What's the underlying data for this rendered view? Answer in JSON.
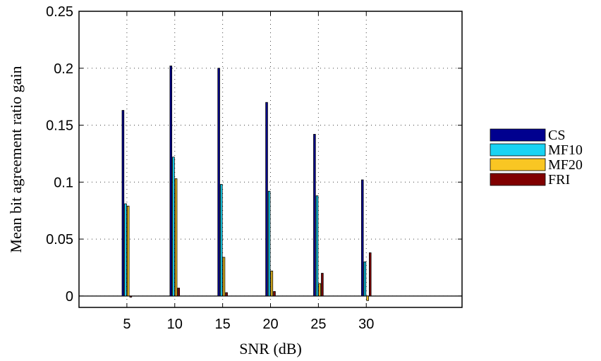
{
  "chart_data": {
    "type": "bar",
    "title": "",
    "xlabel": "SNR (dB)",
    "ylabel": "Mean bit agreement ratio gain",
    "categories": [
      "5",
      "10",
      "15",
      "20",
      "25",
      "30"
    ],
    "x_extent": [
      0,
      40
    ],
    "x_ticks": [
      5,
      10,
      15,
      20,
      25,
      30
    ],
    "ylim": [
      -0.01,
      0.25
    ],
    "y_ticks": [
      "0",
      "0.05",
      "0.1",
      "0.15",
      "0.2",
      "0.25"
    ],
    "y_tick_values": [
      0,
      0.05,
      0.1,
      0.15,
      0.2,
      0.25
    ],
    "grid": true,
    "legend_position": "right",
    "series": [
      {
        "name": "CS",
        "color": "#00008f",
        "values": [
          0.163,
          0.202,
          0.2,
          0.17,
          0.142,
          0.102
        ]
      },
      {
        "name": "MF10",
        "color": "#19d3f3",
        "values": [
          0.081,
          0.122,
          0.098,
          0.092,
          0.088,
          0.03
        ]
      },
      {
        "name": "MF20",
        "color": "#f9c623",
        "values": [
          0.079,
          0.103,
          0.034,
          0.022,
          0.011,
          -0.004
        ]
      },
      {
        "name": "FRI",
        "color": "#800000",
        "values": [
          -0.001,
          0.007,
          0.003,
          0.004,
          0.02,
          0.038
        ]
      }
    ]
  }
}
